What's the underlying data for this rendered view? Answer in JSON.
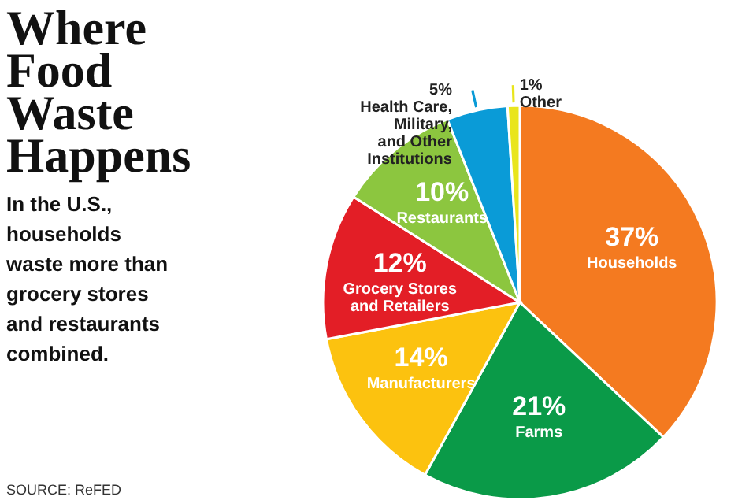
{
  "chart_data": {
    "type": "pie",
    "title": "Where\nFood\nWaste\nHappens",
    "subtitle": "In the U.S.,\nhouseholds\nwaste more than\ngrocery stores\nand restaurants\ncombined.",
    "categories": [
      "Households",
      "Farms",
      "Manufacturers",
      "Grocery Stores\nand Retailers",
      "Restaurants",
      "Health Care,\nMilitary,\nand Other\nInstitutions",
      "Other"
    ],
    "values": [
      37,
      21,
      14,
      12,
      10,
      5,
      1
    ],
    "colors": [
      "#f47a20",
      "#0a9a48",
      "#fcc20f",
      "#e31e26",
      "#8cc63f",
      "#0a9bd7",
      "#e9e51c"
    ],
    "value_labels": [
      "37%",
      "21%",
      "14%",
      "12%",
      "10%",
      "5%",
      "1%"
    ],
    "annotations": [
      "SOURCE: ReFED"
    ]
  }
}
